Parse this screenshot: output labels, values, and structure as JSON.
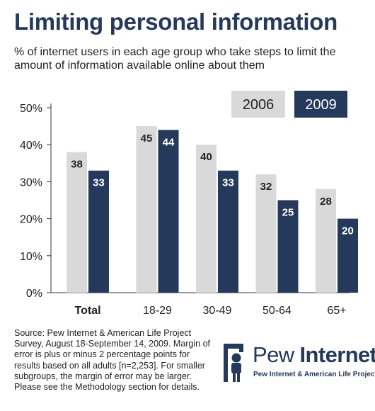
{
  "title": "Limiting personal information",
  "subtitle": "% of internet users in each age group who take steps to limit the amount of information available online about them",
  "footnote": "Source: Pew Internet & American Life Project Survey, August 18-September 14, 2009. Margin of error is plus or minus 2 percentage points for results based on all adults [n=2,253]. For smaller subgroups, the margin of error may be larger. Please see the Methodology section for details.",
  "logo": {
    "word_light": "Pew ",
    "word_bold": "Internet",
    "tagline": "Pew Internet & American Life Project"
  },
  "colors": {
    "title": "#25395a",
    "series_2006": "#d9d9d9",
    "series_2009": "#25395a"
  },
  "chart_data": {
    "type": "bar",
    "categories": [
      "Total",
      "18-29",
      "30-49",
      "50-64",
      "65+"
    ],
    "series": [
      {
        "name": "2006",
        "values": [
          38,
          45,
          40,
          32,
          28
        ]
      },
      {
        "name": "2009",
        "values": [
          33,
          44,
          33,
          25,
          20
        ]
      }
    ],
    "y_ticks": [
      "0%",
      "10%",
      "20%",
      "30%",
      "40%",
      "50%"
    ],
    "ylim": [
      0,
      50
    ],
    "grid": false,
    "legend_position": "top-right",
    "data_labels": true
  }
}
